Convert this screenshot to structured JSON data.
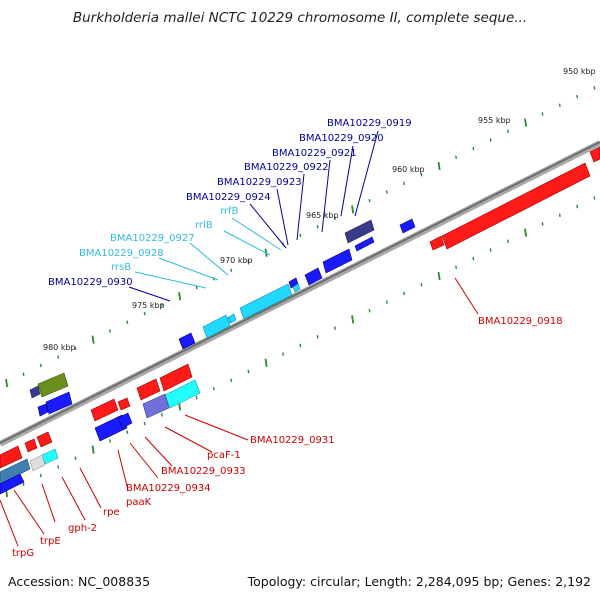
{
  "title": "Burkholderia mallei NCTC 10229 chromosome II, complete seque...",
  "accession": "Accession: NC_008835",
  "summary": "Topology: circular; Length: 2,284,095 bp; Genes: 2,192",
  "colors": {
    "forward_gene": "#ff1a1a",
    "reverse_gene": "#1a1aff",
    "rna_gene": "#22d8ff",
    "other_gene": "#6a8f1a",
    "backbone": "#7a7a7a",
    "tick": "#2a8a2a",
    "label_forward": "#cc0000",
    "label_reverse": "#000099",
    "label_rna": "#33bbdd"
  },
  "scale": {
    "labels": [
      "950 kbp",
      "955 kbp",
      "960 kbp",
      "965 kbp",
      "970 kbp",
      "975 kbp",
      "980 kbp"
    ]
  },
  "gene_labels": {
    "upper": [
      {
        "text": "BMA10229_0919",
        "kind": "reverse"
      },
      {
        "text": "BMA10229_0920",
        "kind": "reverse"
      },
      {
        "text": "BMA10229_0921",
        "kind": "reverse"
      },
      {
        "text": "BMA10229_0922",
        "kind": "reverse"
      },
      {
        "text": "BMA10229_0923",
        "kind": "reverse"
      },
      {
        "text": "BMA10229_0924",
        "kind": "reverse"
      },
      {
        "text": "rrfB",
        "kind": "rna"
      },
      {
        "text": "rrlB",
        "kind": "rna"
      },
      {
        "text": "BMA10229_0927",
        "kind": "rna"
      },
      {
        "text": "BMA10229_0928",
        "kind": "rna"
      },
      {
        "text": "rrsB",
        "kind": "rna"
      },
      {
        "text": "BMA10229_0930",
        "kind": "reverse"
      }
    ],
    "lower": [
      {
        "text": "BMA10229_0918",
        "kind": "forward"
      },
      {
        "text": "BMA10229_0931",
        "kind": "forward"
      },
      {
        "text": "pcaF-1",
        "kind": "forward"
      },
      {
        "text": "BMA10229_0933",
        "kind": "forward"
      },
      {
        "text": "BMA10229_0934",
        "kind": "forward"
      },
      {
        "text": "paaK",
        "kind": "forward"
      },
      {
        "text": "rpe",
        "kind": "forward"
      },
      {
        "text": "gph-2",
        "kind": "forward"
      },
      {
        "text": "trpE",
        "kind": "forward"
      },
      {
        "text": "trpG",
        "kind": "forward"
      }
    ]
  }
}
